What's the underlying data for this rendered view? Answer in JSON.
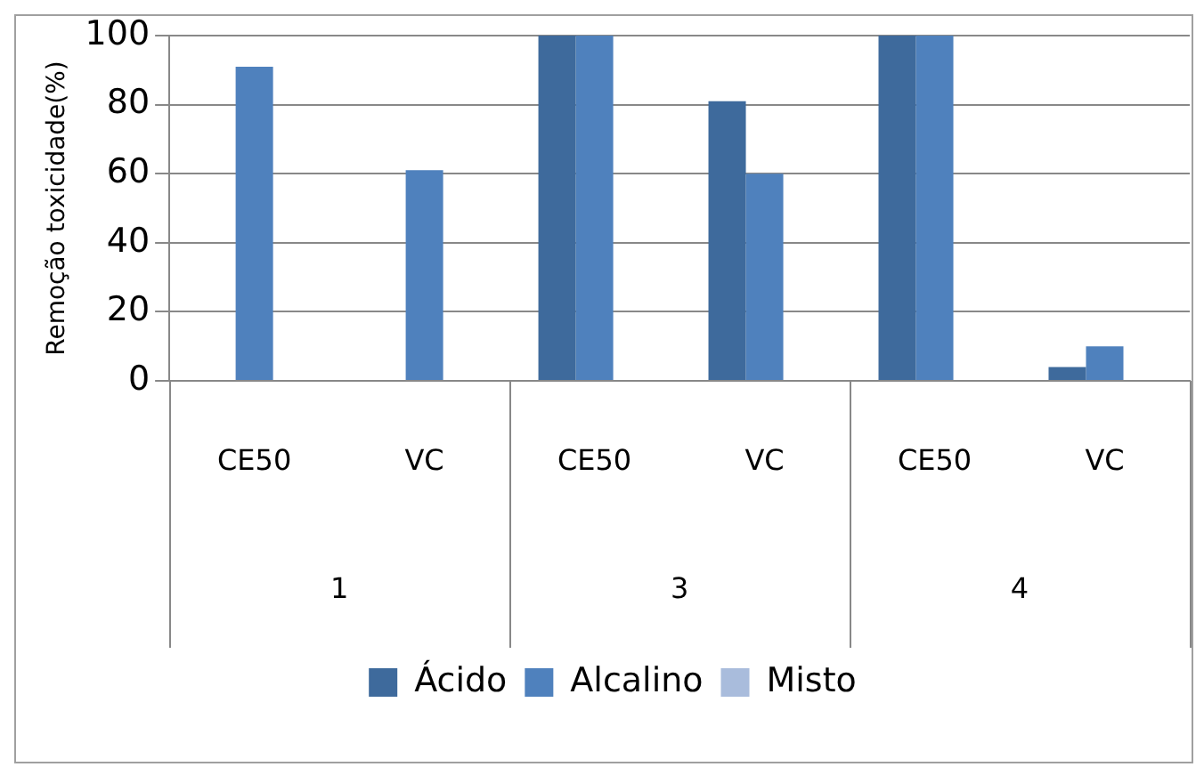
{
  "chart_data": {
    "type": "bar",
    "ylabel": "Remoção toxicidade(%)",
    "categories": [
      "CE50",
      "VC",
      "CE50",
      "VC",
      "CE50",
      "VC"
    ],
    "annotations": [
      "1",
      "3",
      "4"
    ],
    "series": [
      {
        "name": "Ácido",
        "color": "#3e6a9c",
        "values": [
          0,
          0,
          100,
          81,
          100,
          4
        ]
      },
      {
        "name": "Alcalino",
        "color": "#4f81bd",
        "values": [
          91,
          61,
          100,
          60,
          100,
          10
        ]
      },
      {
        "name": "Misto",
        "color": "#a9bcdc",
        "values": [
          0,
          0,
          0,
          0,
          0,
          0
        ]
      }
    ],
    "ylim": [
      0,
      100
    ],
    "yticks": [
      0,
      20,
      40,
      60,
      80,
      100
    ],
    "grid": "y",
    "legend": "bottom"
  }
}
